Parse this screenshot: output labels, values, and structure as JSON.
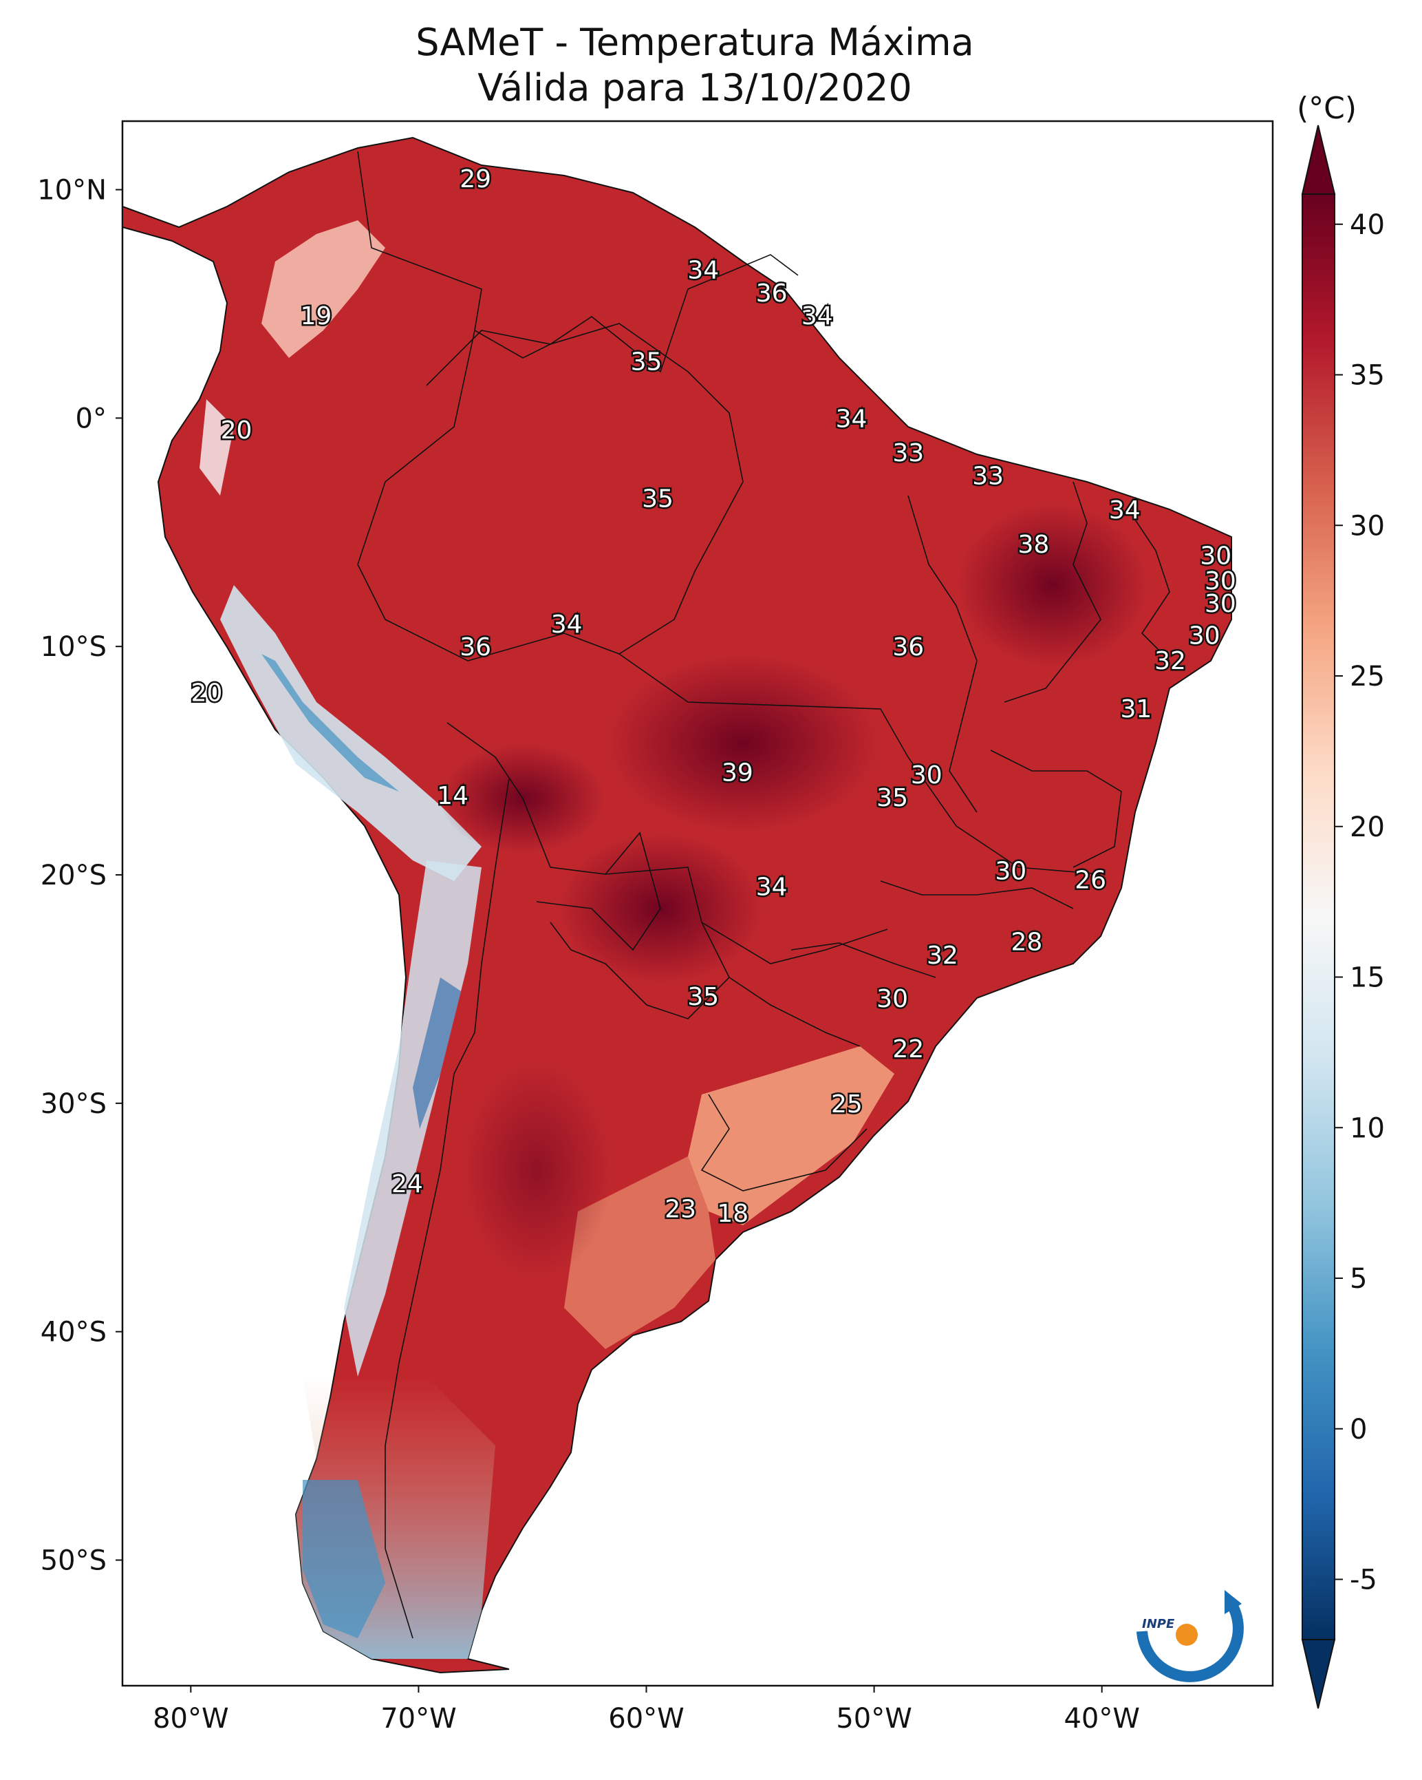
{
  "title": {
    "line1": "SAMeT - Temperatura Máxima",
    "line2": "Válida para 13/10/2020"
  },
  "axes": {
    "lat_ticks": [
      "10°N",
      "0°",
      "10°S",
      "20°S",
      "30°S",
      "40°S",
      "50°S"
    ],
    "lon_ticks": [
      "80°W",
      "70°W",
      "60°W",
      "50°W",
      "40°W"
    ]
  },
  "colorbar": {
    "unit": "(°C)",
    "ticks": [
      "40",
      "35",
      "30",
      "25",
      "20",
      "15",
      "10",
      "5",
      "0",
      "-5"
    ],
    "colors": {
      "max": "#67001f",
      "hot": "#b2182b",
      "warm": "#d6604d",
      "mild": "#f4a582",
      "pale": "#fddbc7",
      "neutral": "#f7f7f7",
      "cool": "#d1e5f0",
      "cold": "#92c5de",
      "colder": "#4393c3",
      "coldest": "#2166ac",
      "min": "#053061"
    }
  },
  "map_values": [
    {
      "label": "29",
      "lon": -67.5,
      "lat": 10.5
    },
    {
      "label": "19",
      "lon": -74.5,
      "lat": 4.5
    },
    {
      "label": "34",
      "lon": -57.5,
      "lat": 6.5
    },
    {
      "label": "36",
      "lon": -54.5,
      "lat": 5.5
    },
    {
      "label": "34",
      "lon": -52.5,
      "lat": 4.5
    },
    {
      "label": "35",
      "lon": -60,
      "lat": 2.5
    },
    {
      "label": "20",
      "lon": -78,
      "lat": -0.5
    },
    {
      "label": "34",
      "lon": -51,
      "lat": 0
    },
    {
      "label": "33",
      "lon": -48.5,
      "lat": -1.5
    },
    {
      "label": "33",
      "lon": -45,
      "lat": -2.5
    },
    {
      "label": "35",
      "lon": -59.5,
      "lat": -3.5
    },
    {
      "label": "34",
      "lon": -39,
      "lat": -4
    },
    {
      "label": "38",
      "lon": -43,
      "lat": -5.5
    },
    {
      "label": "30",
      "lon": -35,
      "lat": -6
    },
    {
      "label": "30",
      "lon": -34.8,
      "lat": -7.1
    },
    {
      "label": "30",
      "lon": -34.8,
      "lat": -8.1
    },
    {
      "label": "34",
      "lon": -63.5,
      "lat": -9
    },
    {
      "label": "36",
      "lon": -67.5,
      "lat": -10
    },
    {
      "label": "30",
      "lon": -35.5,
      "lat": -9.5
    },
    {
      "label": "36",
      "lon": -48.5,
      "lat": -10
    },
    {
      "label": "32",
      "lon": -37,
      "lat": -10.6
    },
    {
      "label": "20",
      "lon": -79.3,
      "lat": -12
    },
    {
      "label": "31",
      "lon": -38.5,
      "lat": -12.7
    },
    {
      "label": "39",
      "lon": -56,
      "lat": -15.5
    },
    {
      "label": "30",
      "lon": -47.7,
      "lat": -15.6
    },
    {
      "label": "14",
      "lon": -68.5,
      "lat": -16.5
    },
    {
      "label": "35",
      "lon": -49.2,
      "lat": -16.6
    },
    {
      "label": "30",
      "lon": -44,
      "lat": -19.8
    },
    {
      "label": "26",
      "lon": -40.5,
      "lat": -20.2
    },
    {
      "label": "34",
      "lon": -54.5,
      "lat": -20.5
    },
    {
      "label": "28",
      "lon": -43.3,
      "lat": -22.9
    },
    {
      "label": "32",
      "lon": -47,
      "lat": -23.5
    },
    {
      "label": "35",
      "lon": -57.5,
      "lat": -25.3
    },
    {
      "label": "30",
      "lon": -49.2,
      "lat": -25.4
    },
    {
      "label": "22",
      "lon": -48.5,
      "lat": -27.6
    },
    {
      "label": "25",
      "lon": -51.2,
      "lat": -30
    },
    {
      "label": "24",
      "lon": -70.5,
      "lat": -33.5
    },
    {
      "label": "23",
      "lon": -58.5,
      "lat": -34.6
    },
    {
      "label": "18",
      "lon": -56.2,
      "lat": -34.8
    }
  ]
}
